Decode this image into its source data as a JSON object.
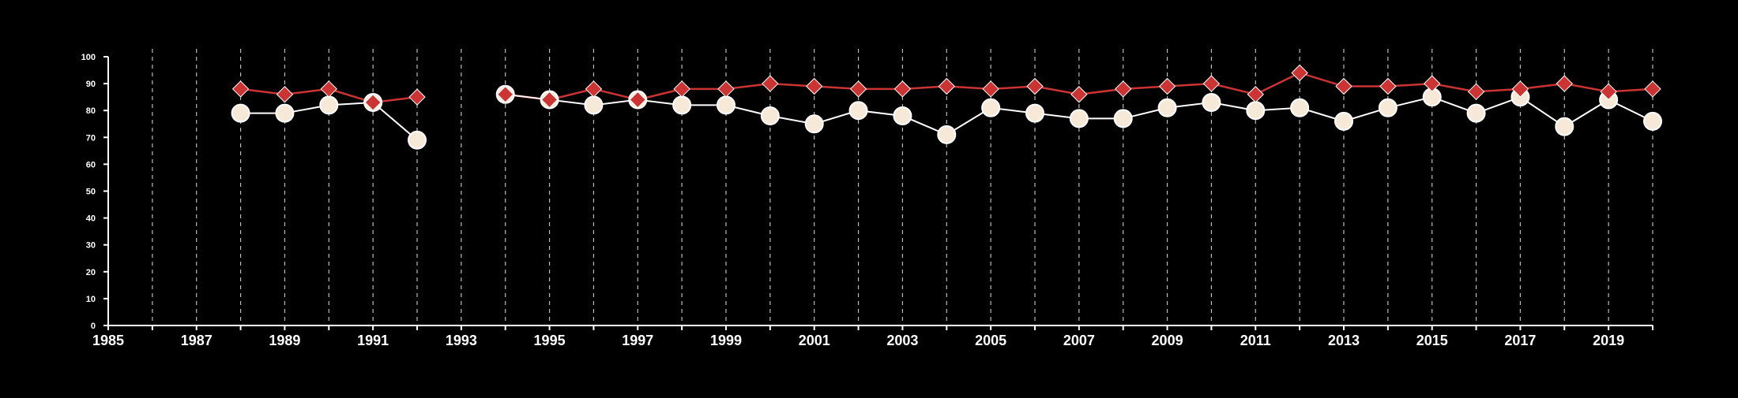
{
  "colors": {
    "background": "#000000",
    "axis": "#ffffff",
    "grid": "#bbbbbb",
    "series_red": "#cc3333",
    "series_cream": "#f7e9d7"
  },
  "chart_data": {
    "type": "line",
    "title": "",
    "xlabel": "",
    "ylabel": "",
    "xlim": [
      1985,
      2020
    ],
    "ylim": [
      0,
      100
    ],
    "grid": "vertical dashed lines at every year",
    "legend": "none",
    "x_tick_labels": [
      "1985",
      "1987",
      "1989",
      "1991",
      "1993",
      "1995",
      "1997",
      "1999",
      "2001",
      "2003",
      "2005",
      "2007",
      "2009",
      "2011",
      "2013",
      "2015",
      "2017",
      "2019"
    ],
    "y_tick_labels": [
      "0",
      "10",
      "20",
      "30",
      "40",
      "50",
      "60",
      "70",
      "80",
      "90",
      "100"
    ],
    "x": [
      1988,
      1989,
      1990,
      1991,
      1992,
      1993,
      1994,
      1995,
      1996,
      1997,
      1998,
      1999,
      2000,
      2001,
      2002,
      2003,
      2004,
      2005,
      2006,
      2007,
      2008,
      2009,
      2010,
      2011,
      2012,
      2013,
      2014,
      2015,
      2016,
      2017,
      2018,
      2019,
      2020
    ],
    "series": [
      {
        "marker": "diamond",
        "color": "#cc3333",
        "values": [
          88,
          86,
          88,
          83,
          85,
          null,
          86,
          84,
          88,
          84,
          88,
          88,
          90,
          89,
          88,
          88,
          89,
          88,
          89,
          86,
          88,
          89,
          90,
          86,
          94,
          89,
          89,
          90,
          87,
          88,
          90,
          87,
          88
        ]
      },
      {
        "marker": "circle",
        "color": "#f7e9d7",
        "values": [
          79,
          79,
          82,
          83,
          69,
          null,
          86,
          84,
          82,
          84,
          82,
          82,
          78,
          75,
          80,
          78,
          71,
          81,
          79,
          77,
          77,
          81,
          83,
          80,
          81,
          76,
          81,
          85,
          79,
          85,
          74,
          84,
          76
        ]
      }
    ]
  }
}
